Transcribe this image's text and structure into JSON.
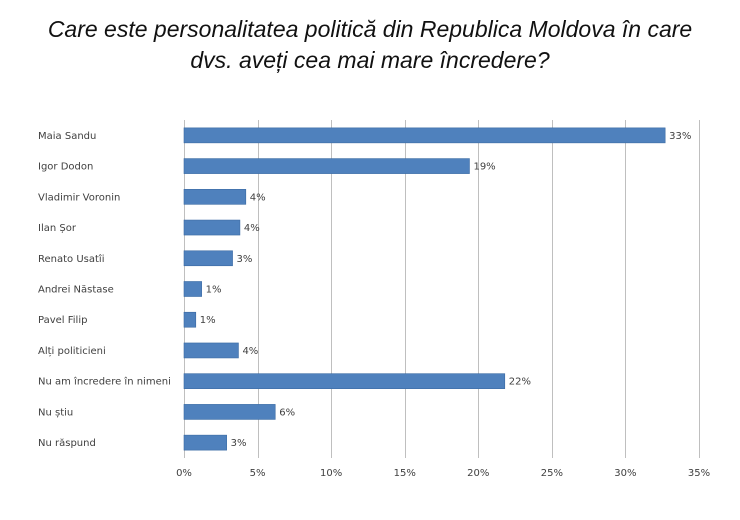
{
  "chart_data": {
    "type": "bar",
    "orientation": "horizontal",
    "title_lines": [
      "Care este personalitatea politică din Republica Moldova în care",
      "dvs. aveți cea mai mare încredere?"
    ],
    "categories": [
      "Maia Sandu",
      "Igor Dodon",
      "Vladimir Voronin",
      "Ilan Șor",
      "Renato Usatîi",
      "Andrei Năstase",
      "Pavel Filip",
      "Alți politicieni",
      "Nu am încredere în nimeni",
      "Nu știu",
      "Nu răspund"
    ],
    "values": [
      32.7,
      19.4,
      4.2,
      3.8,
      3.3,
      1.2,
      0.8,
      3.7,
      21.8,
      6.2,
      2.9
    ],
    "data_labels": [
      "33%",
      "19%",
      "4%",
      "4%",
      "3%",
      "1%",
      "1%",
      "4%",
      "22%",
      "6%",
      "3%"
    ],
    "xlim": [
      0,
      35
    ],
    "xticks": [
      0,
      5,
      10,
      15,
      20,
      25,
      30,
      35
    ],
    "xtick_labels": [
      "0%",
      "5%",
      "10%",
      "15%",
      "20%",
      "25%",
      "30%",
      "35%"
    ],
    "grid": "vertical",
    "bar_color": "#4f81bd",
    "bar_stroke": "#3a6aa3",
    "grid_color": "#bfbfbf",
    "text_color": "#404040"
  }
}
